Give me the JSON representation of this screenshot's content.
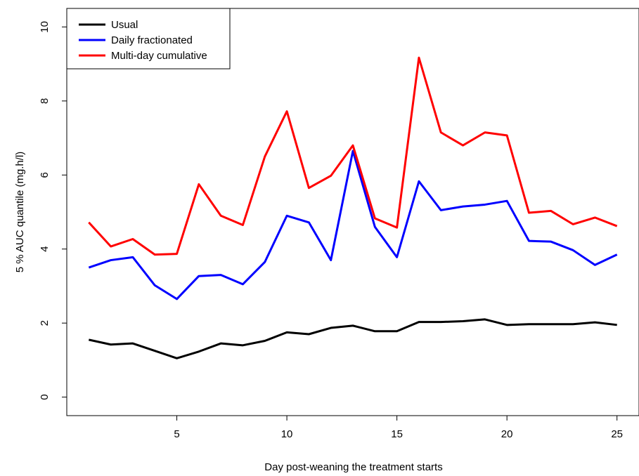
{
  "chart_data": {
    "type": "line",
    "title": "",
    "xlabel": "Day post-weaning the treatment starts",
    "ylabel": "5 % AUC quantile (mg.h/l)",
    "x": [
      1,
      2,
      3,
      4,
      5,
      6,
      7,
      8,
      9,
      10,
      11,
      12,
      13,
      14,
      15,
      16,
      17,
      18,
      19,
      20,
      21,
      22,
      23,
      24,
      25
    ],
    "xlim": [
      0,
      26
    ],
    "ylim": [
      -0.5,
      10.5
    ],
    "xticks": [
      5,
      10,
      15,
      20,
      25
    ],
    "yticks": [
      0,
      2,
      4,
      6,
      8,
      10
    ],
    "xtick_labels": [
      "5",
      "10",
      "15",
      "20",
      "25"
    ],
    "ytick_labels": [
      "0",
      "2",
      "4",
      "6",
      "8",
      "10"
    ],
    "grid": false,
    "legend_position": "top-left",
    "series": [
      {
        "name": "Usual",
        "color": "#000000",
        "values": [
          1.55,
          1.42,
          1.45,
          1.25,
          1.05,
          1.23,
          1.45,
          1.4,
          1.52,
          1.75,
          1.7,
          1.87,
          1.93,
          1.78,
          1.78,
          2.03,
          2.03,
          2.05,
          2.1,
          1.95,
          1.97,
          1.97,
          1.97,
          2.02,
          1.95
        ]
      },
      {
        "name": "Daily fractionated",
        "color": "#0000ff",
        "values": [
          3.5,
          3.7,
          3.78,
          3.02,
          2.65,
          3.27,
          3.3,
          3.05,
          3.65,
          4.9,
          4.72,
          3.7,
          6.65,
          4.6,
          3.78,
          5.83,
          5.05,
          5.15,
          5.2,
          5.3,
          4.22,
          4.2,
          3.97,
          3.57,
          3.85
        ]
      },
      {
        "name": "Multi-day cumulative",
        "color": "#ff0000",
        "values": [
          4.72,
          4.07,
          4.27,
          3.85,
          3.87,
          5.75,
          4.9,
          4.65,
          6.5,
          7.72,
          5.65,
          5.98,
          6.8,
          4.83,
          4.58,
          9.17,
          7.15,
          6.8,
          7.15,
          7.07,
          4.98,
          5.03,
          4.67,
          4.85,
          4.62
        ]
      }
    ]
  }
}
